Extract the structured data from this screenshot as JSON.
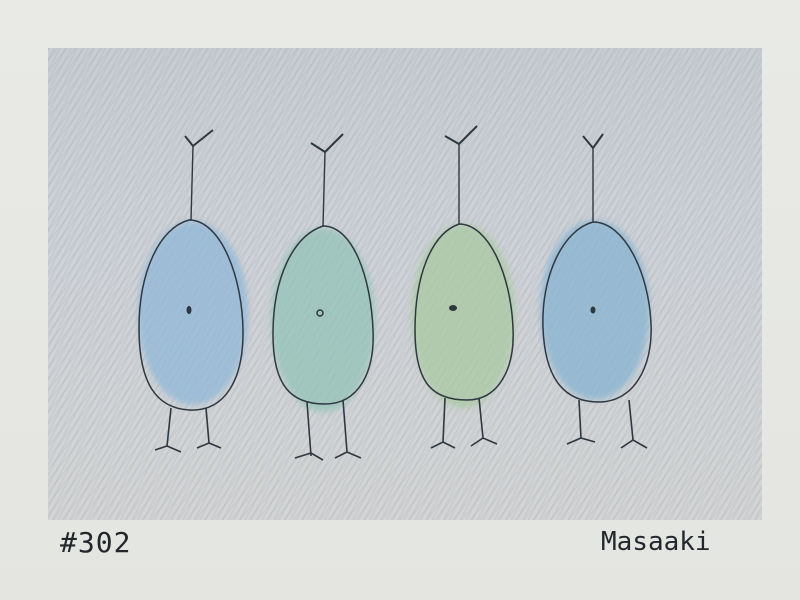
{
  "artwork": {
    "number": "#302",
    "signature": "Masaaki",
    "colors": {
      "paper": "#e6e7e3",
      "background_wash": "#cdd1d5",
      "ink": "#2f3740",
      "bird_1": "#8fb7d8",
      "bird_2": "#8fc3b6",
      "bird_3": "#a9c9a2",
      "bird_4": "#86b4d1"
    }
  }
}
